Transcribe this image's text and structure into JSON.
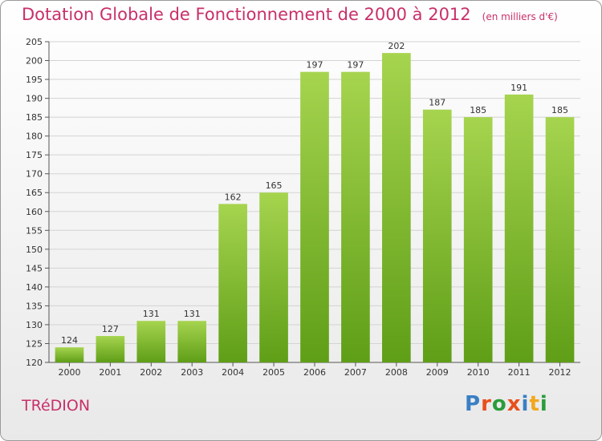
{
  "title": "Dotation Globale de Fonctionnement de 2000 à 2012",
  "unit_label": "(en milliers d'€)",
  "commune": "TRéDION",
  "logo": {
    "text": "Proxiti",
    "colors": [
      "#3a7fc4",
      "#e8501c",
      "#2a9c3a",
      "#e8501c",
      "#3a7fc4",
      "#f2a81d",
      "#2a9c3a"
    ]
  },
  "colors": {
    "accent": "#c8306a",
    "bar_light": "#a6d44f",
    "bar_dark": "#5f9e17",
    "axis": "#555555",
    "grid": "#d3d3d3"
  },
  "chart_data": {
    "type": "bar",
    "title": "Dotation Globale de Fonctionnement de 2000 à 2012",
    "categories": [
      "2000",
      "2001",
      "2002",
      "2003",
      "2004",
      "2005",
      "2006",
      "2007",
      "2008",
      "2009",
      "2010",
      "2011",
      "2012"
    ],
    "values": [
      124,
      127,
      131,
      131,
      162,
      165,
      197,
      197,
      202,
      187,
      185,
      191,
      185
    ],
    "ylim": [
      120,
      205
    ],
    "yticks": [
      120,
      125,
      130,
      135,
      140,
      145,
      150,
      155,
      160,
      165,
      170,
      175,
      180,
      185,
      190,
      195,
      200,
      205
    ],
    "grid": true,
    "xlabel": "",
    "ylabel": ""
  }
}
